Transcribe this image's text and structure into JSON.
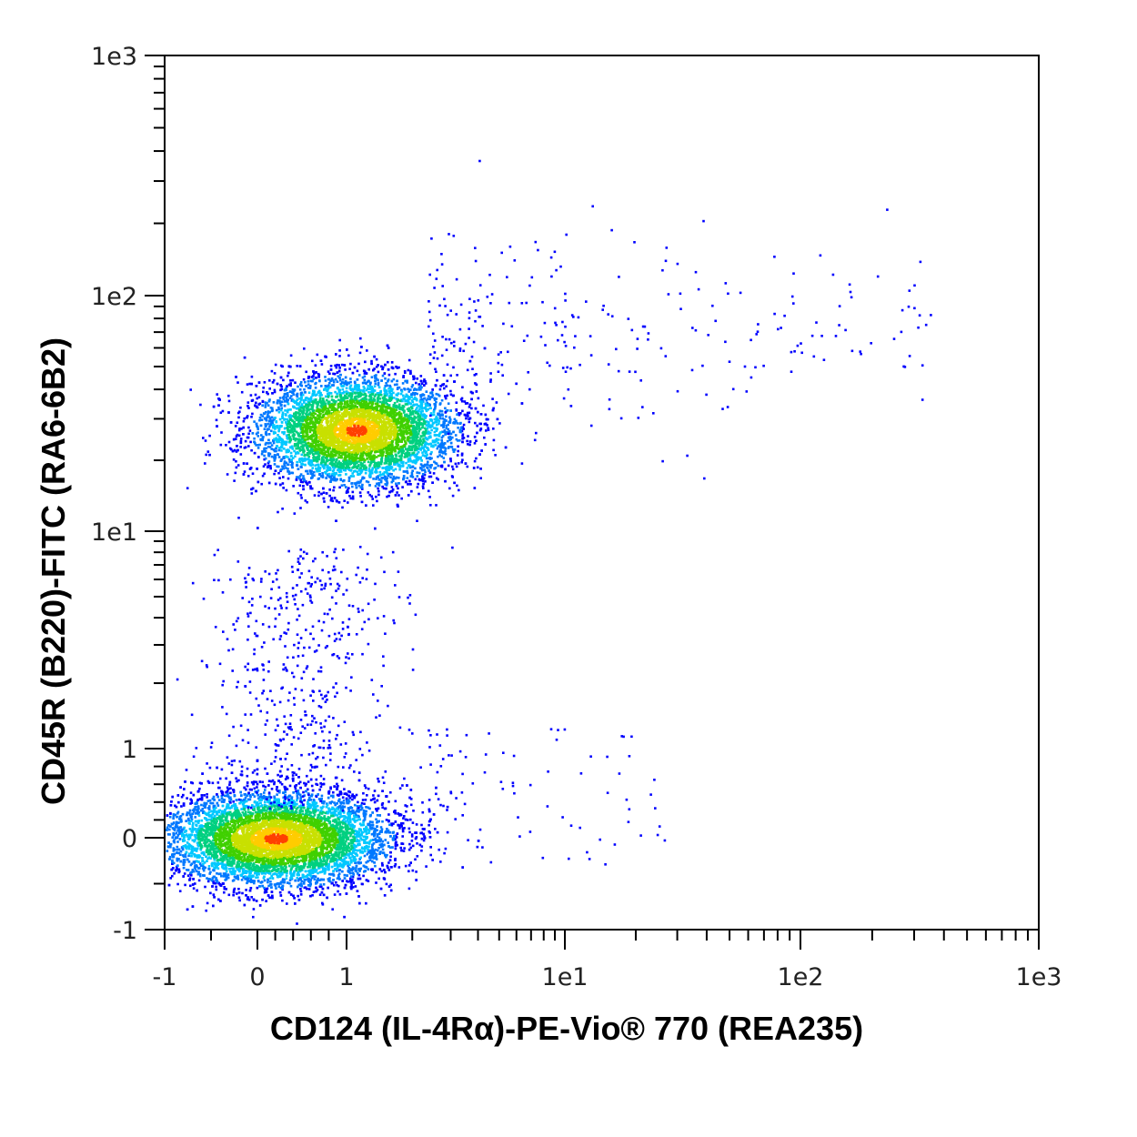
{
  "chart_data": {
    "type": "scatter",
    "subtype": "flow-cytometry density dot plot (pseudocolor), biexponential axes",
    "xlabel": "CD124 (IL-4Rα)-PE-Vio® 770 (REA235)",
    "ylabel": "CD45R (B220)-FITC (RA6-6B2)",
    "x_scale": "biexponential",
    "y_scale": "biexponential",
    "xlim": [
      -1,
      1000
    ],
    "ylim": [
      -1,
      1000
    ],
    "x_ticks": [
      {
        "value": -1,
        "label": "-1"
      },
      {
        "value": 0,
        "label": "0"
      },
      {
        "value": 1,
        "label": "1"
      },
      {
        "value": 10,
        "label": "1e1"
      },
      {
        "value": 100,
        "label": "1e2"
      },
      {
        "value": 1000,
        "label": "1e3"
      }
    ],
    "y_ticks": [
      {
        "value": -1,
        "label": "-1"
      },
      {
        "value": 0,
        "label": "0"
      },
      {
        "value": 1,
        "label": "1"
      },
      {
        "value": 10,
        "label": "1e1"
      },
      {
        "value": 100,
        "label": "1e2"
      },
      {
        "value": 1000,
        "label": "1e3"
      }
    ],
    "grid": false,
    "legend": "none",
    "colormap": [
      "#0000ff",
      "#0078ff",
      "#00c8ff",
      "#00d080",
      "#40d000",
      "#c8e000",
      "#ffcc00",
      "#ff4000"
    ],
    "populations": [
      {
        "x_center": 0.2,
        "y_center": 0.0,
        "x_spread": 0.9,
        "y_spread": 0.35,
        "density": "high"
      },
      {
        "x_center": 1.1,
        "y_center": 27,
        "x_spread": 1.0,
        "y_spread": 0.45,
        "density": "high"
      }
    ],
    "sparse_events_x_range": [
      3,
      350
    ]
  }
}
